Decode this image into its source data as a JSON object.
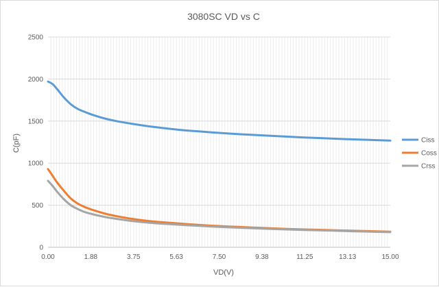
{
  "chart_data": {
    "type": "line",
    "title": "3080SC VD vs C",
    "xlabel": "VD(V)",
    "ylabel": "C(pF)",
    "xlim": [
      0,
      15
    ],
    "ylim": [
      0,
      2500
    ],
    "x_tick_labels": [
      "0.00",
      "1.88",
      "3.75",
      "5.63",
      "7.50",
      "9.38",
      "11.25",
      "13.13",
      "15.00"
    ],
    "y_tick_labels": [
      "0",
      "500",
      "1000",
      "1500",
      "2000",
      "2500"
    ],
    "y_ticks": [
      0,
      500,
      1000,
      1500,
      2000,
      2500
    ],
    "grid": true,
    "legend_position": "right",
    "series": [
      {
        "name": "Ciss",
        "color": "#5b9bd5",
        "x": [
          0,
          0.2,
          0.4,
          0.7,
          1.0,
          1.3,
          1.6,
          2.0,
          2.5,
          3.0,
          3.75,
          4.5,
          5.63,
          6.5,
          7.5,
          8.5,
          9.38,
          10.5,
          11.25,
          12.5,
          13.13,
          14.0,
          15.0
        ],
        "values": [
          1970,
          1940,
          1880,
          1780,
          1700,
          1645,
          1610,
          1570,
          1530,
          1500,
          1465,
          1435,
          1400,
          1380,
          1360,
          1343,
          1330,
          1315,
          1305,
          1292,
          1285,
          1277,
          1268
        ]
      },
      {
        "name": "Coss",
        "color": "#ed7d31",
        "x": [
          0,
          0.2,
          0.4,
          0.7,
          1.0,
          1.3,
          1.6,
          2.0,
          2.5,
          3.0,
          3.75,
          4.5,
          5.63,
          6.5,
          7.5,
          8.5,
          9.38,
          10.5,
          11.25,
          12.5,
          13.13,
          14.0,
          15.0
        ],
        "values": [
          930,
          850,
          770,
          670,
          580,
          520,
          480,
          440,
          400,
          370,
          335,
          310,
          285,
          268,
          252,
          240,
          230,
          218,
          212,
          203,
          198,
          192,
          185
        ]
      },
      {
        "name": "Crss",
        "color": "#a5a5a5",
        "x": [
          0,
          0.2,
          0.4,
          0.7,
          1.0,
          1.3,
          1.6,
          2.0,
          2.5,
          3.0,
          3.75,
          4.5,
          5.63,
          6.5,
          7.5,
          8.5,
          9.38,
          10.5,
          11.25,
          12.5,
          13.13,
          14.0,
          15.0
        ],
        "values": [
          790,
          730,
          660,
          570,
          500,
          455,
          420,
          390,
          360,
          338,
          310,
          290,
          270,
          256,
          242,
          231,
          222,
          212,
          206,
          197,
          192,
          186,
          180
        ]
      }
    ]
  }
}
